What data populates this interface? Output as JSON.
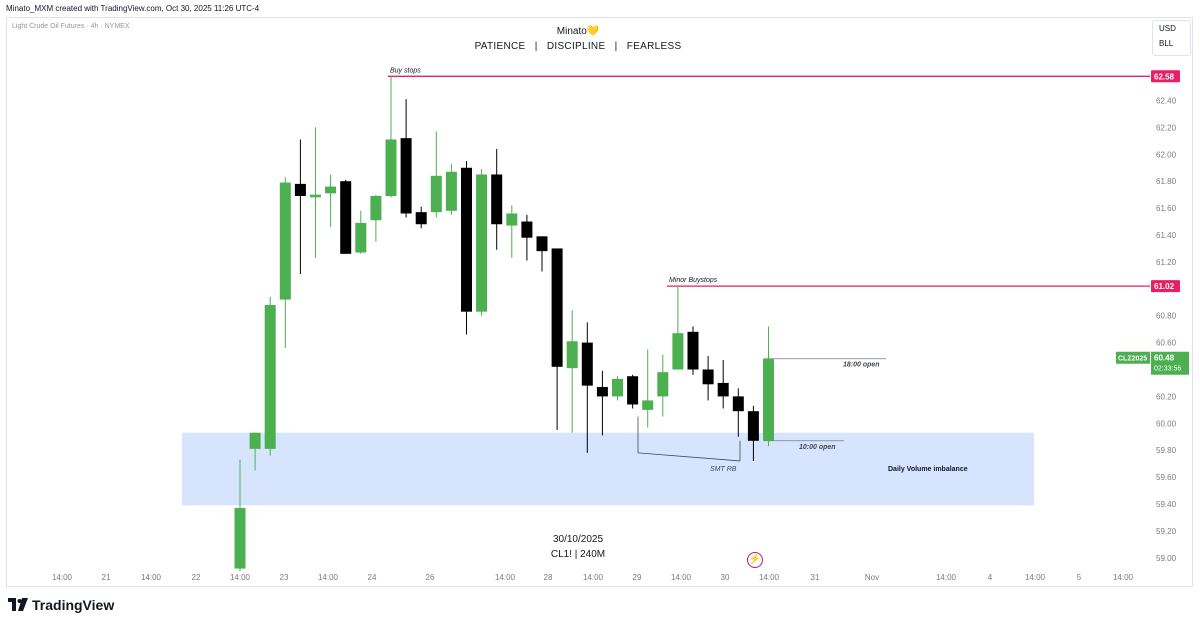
{
  "header": {
    "credit": "Minato_MXM created with TradingView.com, Oct 30, 2025 11:26 UTC-4"
  },
  "legend": {
    "symbol_title": "Light Crude Oil Futures · 4h · NYMEX"
  },
  "author": {
    "name": "Minato",
    "heart": "💛",
    "motto": "PATIENCE   |   DISCIPLINE   |   FEARLESS"
  },
  "currency": {
    "currency": "USD",
    "unit": "BLL"
  },
  "watermark": {
    "date": "30/10/2025",
    "symbol": "CL1! | 240M"
  },
  "brand": {
    "name": "TradingView"
  },
  "icons": {
    "bolt": "lightning-bolt-icon"
  },
  "colors": {
    "up": "#4caf50",
    "down": "#000000",
    "level": "#e91e63",
    "zone": "#bbd3fb",
    "price_tag": "#4caf50"
  },
  "chart_data": {
    "type": "candlestick",
    "title": "Light Crude Oil Futures · 4h · NYMEX",
    "ylim": [
      58.9,
      62.75
    ],
    "y_ticks": [
      "62.40",
      "62.20",
      "62.00",
      "61.80",
      "61.60",
      "61.40",
      "61.20",
      "61.00",
      "60.80",
      "60.60",
      "60.40",
      "60.20",
      "60.00",
      "59.80",
      "59.60",
      "59.40",
      "59.20",
      "59.00"
    ],
    "x_ticks": [
      "14:00",
      "21",
      "14:00",
      "22",
      "14:00",
      "23",
      "14:00",
      "24",
      "26",
      "14:00",
      "28",
      "14:00",
      "29",
      "14:00",
      "30",
      "14:00",
      "31",
      "Nov",
      "14:00",
      "4",
      "14:00",
      "5",
      "14:00"
    ],
    "candles": [
      {
        "o": 58.92,
        "h": 59.73,
        "l": 58.9,
        "c": 59.37
      },
      {
        "o": 59.81,
        "h": 59.93,
        "l": 59.65,
        "c": 59.93
      },
      {
        "o": 59.81,
        "h": 60.94,
        "l": 59.76,
        "c": 60.88
      },
      {
        "o": 60.92,
        "h": 61.83,
        "l": 60.56,
        "c": 61.79
      },
      {
        "o": 61.78,
        "h": 62.11,
        "l": 61.11,
        "c": 61.69
      },
      {
        "o": 61.68,
        "h": 62.2,
        "l": 61.23,
        "c": 61.7
      },
      {
        "o": 61.71,
        "h": 61.85,
        "l": 61.46,
        "c": 61.76
      },
      {
        "o": 61.8,
        "h": 61.81,
        "l": 61.26,
        "c": 61.26
      },
      {
        "o": 61.27,
        "h": 61.58,
        "l": 61.26,
        "c": 61.49
      },
      {
        "o": 61.51,
        "h": 61.7,
        "l": 61.35,
        "c": 61.69
      },
      {
        "o": 61.69,
        "h": 62.58,
        "l": 61.68,
        "c": 62.11
      },
      {
        "o": 62.12,
        "h": 62.41,
        "l": 61.53,
        "c": 61.56
      },
      {
        "o": 61.57,
        "h": 61.61,
        "l": 61.45,
        "c": 61.48
      },
      {
        "o": 61.57,
        "h": 62.17,
        "l": 61.53,
        "c": 61.84
      },
      {
        "o": 61.58,
        "h": 61.93,
        "l": 61.55,
        "c": 61.87
      },
      {
        "o": 61.9,
        "h": 61.95,
        "l": 60.66,
        "c": 60.83
      },
      {
        "o": 60.83,
        "h": 61.89,
        "l": 60.8,
        "c": 61.85
      },
      {
        "o": 61.85,
        "h": 62.04,
        "l": 61.29,
        "c": 61.48
      },
      {
        "o": 61.47,
        "h": 61.62,
        "l": 61.23,
        "c": 61.56
      },
      {
        "o": 61.5,
        "h": 61.55,
        "l": 61.21,
        "c": 61.38
      },
      {
        "o": 61.39,
        "h": 61.39,
        "l": 61.13,
        "c": 61.28
      },
      {
        "o": 61.3,
        "h": 61.3,
        "l": 59.95,
        "c": 60.42
      },
      {
        "o": 60.41,
        "h": 60.84,
        "l": 59.93,
        "c": 60.61
      },
      {
        "o": 60.6,
        "h": 60.75,
        "l": 59.78,
        "c": 60.28
      },
      {
        "o": 60.27,
        "h": 60.39,
        "l": 59.91,
        "c": 60.2
      },
      {
        "o": 60.2,
        "h": 60.35,
        "l": 60.17,
        "c": 60.33
      },
      {
        "o": 60.35,
        "h": 60.36,
        "l": 60.11,
        "c": 60.14
      },
      {
        "o": 60.1,
        "h": 60.55,
        "l": 59.97,
        "c": 60.17
      },
      {
        "o": 60.2,
        "h": 60.51,
        "l": 60.05,
        "c": 60.38
      },
      {
        "o": 60.4,
        "h": 61.02,
        "l": 60.4,
        "c": 60.67
      },
      {
        "o": 60.68,
        "h": 60.72,
        "l": 60.36,
        "c": 60.4
      },
      {
        "o": 60.4,
        "h": 60.5,
        "l": 60.17,
        "c": 60.29
      },
      {
        "o": 60.3,
        "h": 60.47,
        "l": 60.11,
        "c": 60.2
      },
      {
        "o": 60.2,
        "h": 60.26,
        "l": 59.9,
        "c": 60.09
      },
      {
        "o": 60.09,
        "h": 60.13,
        "l": 59.72,
        "c": 59.87
      },
      {
        "o": 59.87,
        "h": 60.72,
        "l": 59.83,
        "c": 60.48
      }
    ],
    "levels": [
      {
        "name": "Buy stops",
        "price": 62.58,
        "tag": "62.58"
      },
      {
        "name": "Minor Buystops",
        "price": 61.02,
        "tag": "61.02"
      }
    ],
    "opens": [
      {
        "name": "18:00 open",
        "price": 60.48
      },
      {
        "name": "10:00 open",
        "price": 59.87
      }
    ],
    "zone": {
      "name": "Daily Volume imbalance",
      "top": 59.93,
      "bottom": 59.39
    },
    "smt": {
      "name": "SMT RB",
      "from_price": 60.05,
      "to_price": 59.72
    },
    "current": {
      "symbol": "CLZ2025",
      "price": "60.48",
      "countdown": "02:33:56",
      "value": 60.48
    }
  }
}
